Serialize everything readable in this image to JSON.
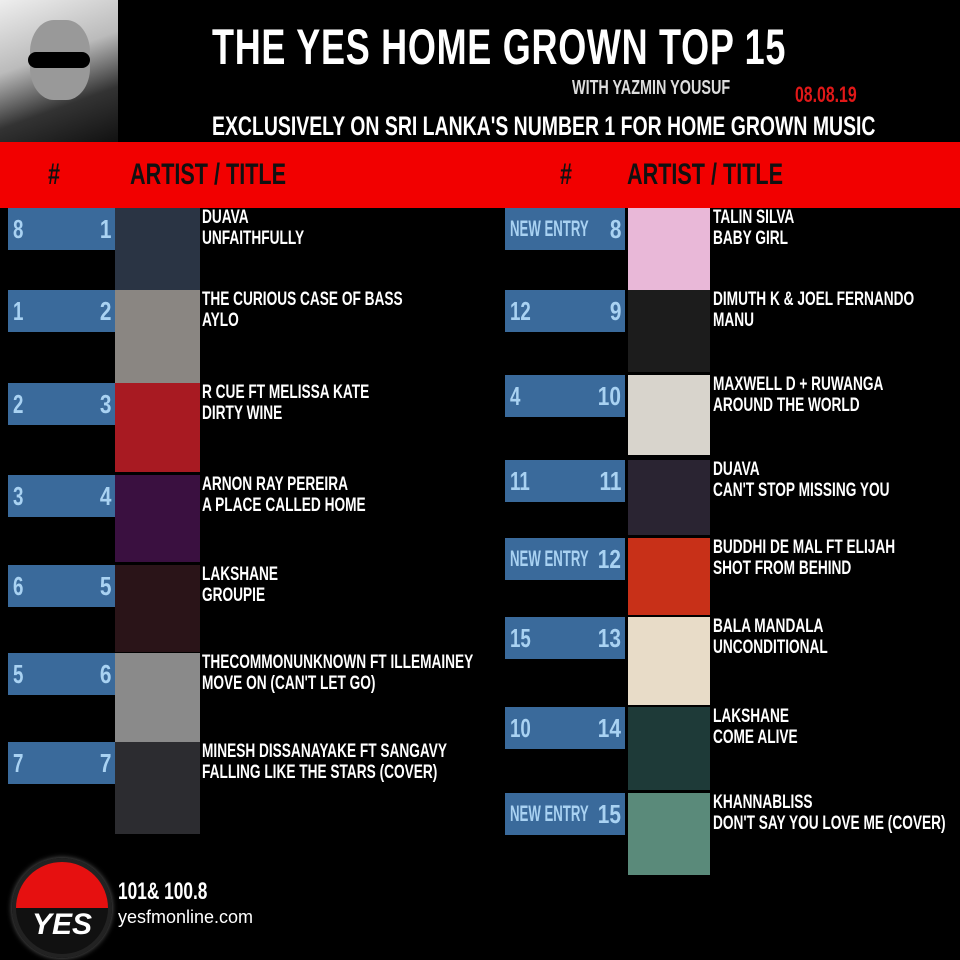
{
  "header": {
    "title": "THE YES HOME GROWN TOP 15",
    "host": "WITH YAZMIN YOUSUF",
    "date": "08.08.19",
    "tagline": "EXCLUSIVELY ON SRI LANKA'S NUMBER 1 FOR HOME GROWN MUSIC"
  },
  "columns": {
    "hash": "#",
    "artist_title": "ARTIST / TITLE"
  },
  "colors": {
    "band": "#f20000",
    "box": "#3a6a9b",
    "date": "#e01818"
  },
  "entries": [
    {
      "last": "8",
      "pos": "1",
      "artist": "DUAVA",
      "title": "UNFAITHFULLY"
    },
    {
      "last": "1",
      "pos": "2",
      "artist": "THE CURIOUS CASE OF BASS",
      "title": "AYLO"
    },
    {
      "last": "2",
      "pos": "3",
      "artist": "R CUE FT MELISSA KATE",
      "title": "DIRTY WINE"
    },
    {
      "last": "3",
      "pos": "4",
      "artist": "ARNON RAY PEREIRA",
      "title": "A PLACE CALLED HOME"
    },
    {
      "last": "6",
      "pos": "5",
      "artist": "LAKSHANE",
      "title": "GROUPIE"
    },
    {
      "last": "5",
      "pos": "6",
      "artist": "THECOMMONUNKNOWN FT ILLEMAINEY",
      "title": "MOVE ON (CAN'T LET GO)"
    },
    {
      "last": "7",
      "pos": "7",
      "artist": "MINESH DISSANAYAKE FT SANGAVY",
      "title": "FALLING LIKE THE STARS (COVER)"
    },
    {
      "last": "NEW ENTRY",
      "pos": "8",
      "artist": "TALIN SILVA",
      "title": "BABY GIRL"
    },
    {
      "last": "12",
      "pos": "9",
      "artist": "DIMUTH K & JOEL FERNANDO",
      "title": "MANU"
    },
    {
      "last": "4",
      "pos": "10",
      "artist": "MAXWELL D + RUWANGA",
      "title": "AROUND THE WORLD"
    },
    {
      "last": "11",
      "pos": "11",
      "artist": "DUAVA",
      "title": "CAN'T STOP MISSING YOU"
    },
    {
      "last": "NEW ENTRY",
      "pos": "12",
      "artist": "BUDDHI DE MAL FT ELIJAH",
      "title": "SHOT FROM BEHIND"
    },
    {
      "last": "15",
      "pos": "13",
      "artist": "BALA MANDALA",
      "title": "UNCONDITIONAL"
    },
    {
      "last": "10",
      "pos": "14",
      "artist": "LAKSHANE",
      "title": "COME ALIVE"
    },
    {
      "last": "NEW ENTRY",
      "pos": "15",
      "artist": "KHANNABLISS",
      "title": "DON'T SAY YOU LOVE ME (COVER)"
    }
  ],
  "footer": {
    "frequency": "101& 100.8",
    "website": "yesfmonline.com",
    "logo_text": "YES"
  }
}
